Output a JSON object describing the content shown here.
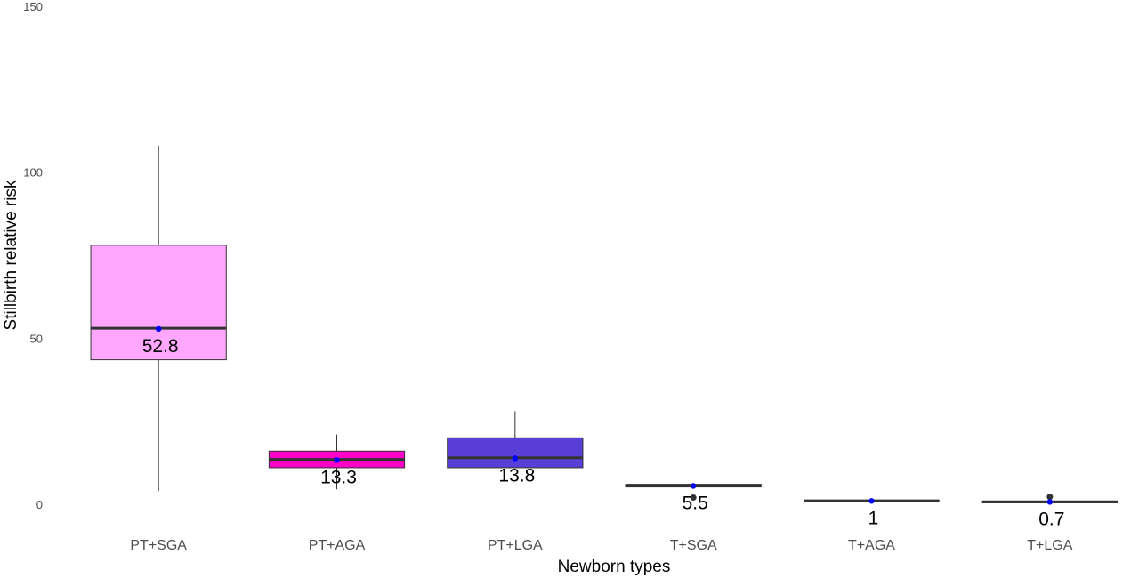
{
  "chart_data": {
    "type": "box",
    "title": "",
    "xlabel": "Newborn types",
    "ylabel": "Stillbirth relative risk",
    "ylim": [
      0,
      150
    ],
    "yticks": [
      0,
      50,
      100,
      150
    ],
    "grid": false,
    "legend": "none",
    "categories": [
      "PT+SGA",
      "PT+AGA",
      "PT+LGA",
      "T+SGA",
      "T+AGA",
      "T+LGA"
    ],
    "boxes": [
      {
        "category": "PT+SGA",
        "whisker_low": 4,
        "q1": 43.5,
        "median": 53,
        "q3": 78,
        "whisker_high": 108,
        "mean": 52.8,
        "label": "52.8",
        "fill": "#ffa6ff",
        "outliers": []
      },
      {
        "category": "PT+AGA",
        "whisker_low": 4.5,
        "q1": 11,
        "median": 13.5,
        "q3": 16,
        "whisker_high": 21,
        "mean": 13.3,
        "label": "13.3",
        "fill": "#ff00c8",
        "outliers": []
      },
      {
        "category": "PT+LGA",
        "whisker_low": 11,
        "q1": 11,
        "median": 14,
        "q3": 20,
        "whisker_high": 28,
        "mean": 13.8,
        "label": "13.8",
        "fill": "#5a3fd6",
        "outliers": []
      },
      {
        "category": "T+SGA",
        "whisker_low": 5.2,
        "q1": 5.2,
        "median": 5.6,
        "q3": 6.0,
        "whisker_high": 6.0,
        "mean": 5.5,
        "label": "5.5",
        "fill": "#333333",
        "outliers": [
          2
        ]
      },
      {
        "category": "T+AGA",
        "whisker_low": 1,
        "q1": 1,
        "median": 1,
        "q3": 1,
        "whisker_high": 1,
        "mean": 1,
        "label": "1",
        "fill": "#333333",
        "outliers": []
      },
      {
        "category": "T+LGA",
        "whisker_low": 0.7,
        "q1": 0.7,
        "median": 0.7,
        "q3": 0.7,
        "whisker_high": 0.7,
        "mean": 0.7,
        "label": "0.7",
        "fill": "#333333",
        "outliers": [
          2.2
        ]
      }
    ],
    "colors": {
      "median_line": "#333333",
      "mean_point": "#0000ff",
      "whisker": "#333333",
      "outlier": "#333333"
    }
  }
}
